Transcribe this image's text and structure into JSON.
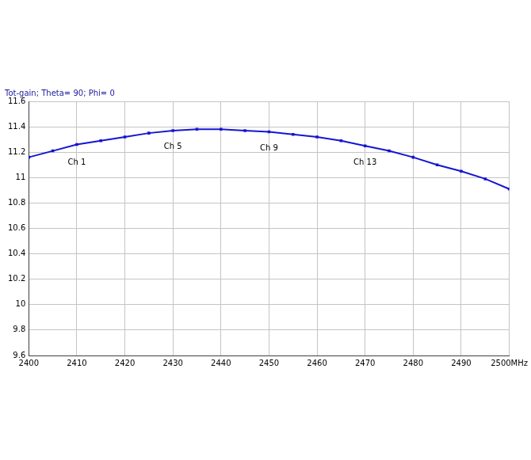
{
  "chart_data": {
    "type": "line",
    "title": "Tot-gain; Theta= 90; Phi= 0",
    "x": [
      2400,
      2405,
      2410,
      2415,
      2420,
      2425,
      2430,
      2435,
      2440,
      2445,
      2450,
      2455,
      2460,
      2465,
      2470,
      2475,
      2480,
      2485,
      2490,
      2495,
      2500
    ],
    "series": [
      {
        "name": "Tot-gain",
        "color": "#1515d4",
        "marker": "square",
        "line_style": "solid",
        "values": [
          11.16,
          11.21,
          11.26,
          11.29,
          11.32,
          11.35,
          11.37,
          11.38,
          11.38,
          11.37,
          11.36,
          11.34,
          11.32,
          11.29,
          11.25,
          11.21,
          11.16,
          11.1,
          11.05,
          10.99,
          10.91
        ]
      }
    ],
    "xlim": [
      2400,
      2500
    ],
    "xticks": [
      2400,
      2410,
      2420,
      2430,
      2440,
      2450,
      2460,
      2470,
      2480,
      2490,
      {
        "value": 2500,
        "label": "2500MHz"
      }
    ],
    "ylim": [
      9.6,
      11.6
    ],
    "yticks": [
      9.6,
      9.8,
      10,
      10.2,
      10.4,
      10.6,
      10.8,
      11,
      11.2,
      11.4,
      11.6
    ],
    "grid": true,
    "annotations": [
      {
        "text": "Ch 1",
        "x": 2410,
        "y": 11.12
      },
      {
        "text": "Ch 5",
        "x": 2430,
        "y": 11.24
      },
      {
        "text": "Ch 9",
        "x": 2450,
        "y": 11.23
      },
      {
        "text": "Ch 13",
        "x": 2470,
        "y": 11.12
      }
    ]
  }
}
